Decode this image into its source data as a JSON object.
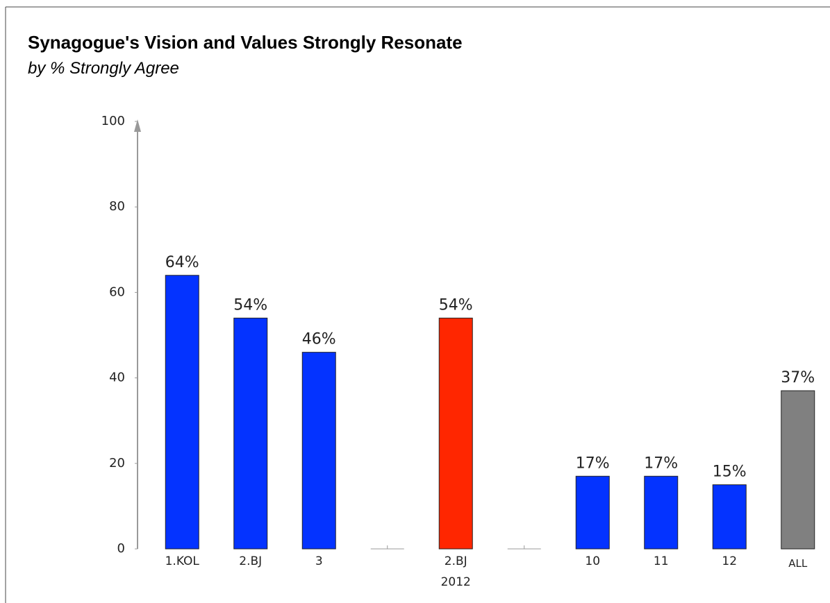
{
  "chart_data": {
    "type": "bar",
    "title": "Synagogue's Vision and Values Strongly Resonate",
    "subtitle": "by % Strongly Agree",
    "categories": [
      "1.KOL",
      "2.BJ",
      "3",
      null,
      "2.BJ\n2012",
      null,
      "10",
      "11",
      "12",
      "ALL"
    ],
    "values": [
      64,
      54,
      46,
      null,
      54,
      null,
      17,
      17,
      15,
      37
    ],
    "value_labels": [
      "64%",
      "54%",
      "46%",
      null,
      "54%",
      null,
      "17%",
      "17%",
      "15%",
      "37%"
    ],
    "colors": [
      "#0433ff",
      "#0433ff",
      "#0433ff",
      null,
      "#ff2600",
      null,
      "#0433ff",
      "#0433ff",
      "#0433ff",
      "#808080"
    ],
    "ylim": [
      0,
      100
    ],
    "yticks": [
      0,
      20,
      40,
      60,
      80,
      100
    ],
    "grid": false
  }
}
